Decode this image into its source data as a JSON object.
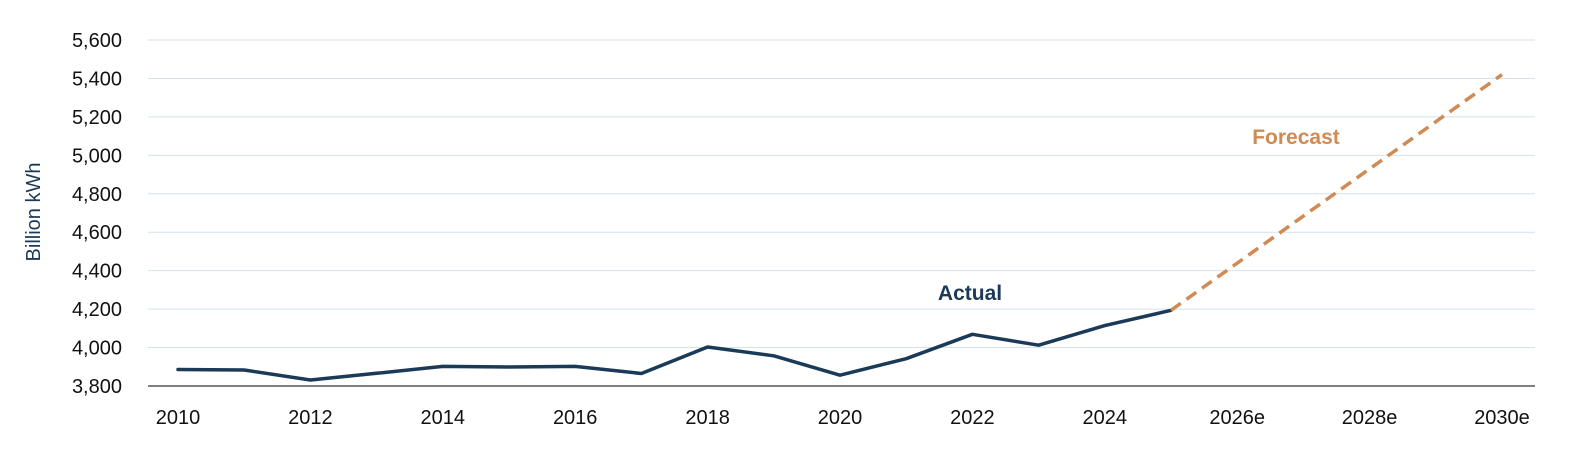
{
  "chart_data": {
    "type": "line",
    "ylabel": "Billion kWh",
    "ylim": [
      3800,
      5600
    ],
    "yticks": [
      3800,
      4000,
      4200,
      4400,
      4600,
      4800,
      5000,
      5200,
      5400,
      5600
    ],
    "ytick_labels": [
      "3,800",
      "4,000",
      "4,200",
      "4,400",
      "4,600",
      "4,800",
      "5,000",
      "5,200",
      "5,400",
      "5,600"
    ],
    "x": [
      "2010",
      "2011",
      "2012",
      "2013",
      "2014",
      "2015",
      "2016",
      "2017",
      "2018",
      "2019",
      "2020",
      "2021",
      "2022",
      "2023",
      "2024",
      "2025",
      "2026e",
      "2027e",
      "2028e",
      "2029e",
      "2030e"
    ],
    "xtick_labels": [
      "2010",
      "2012",
      "2014",
      "2016",
      "2018",
      "2020",
      "2022",
      "2024",
      "2026e",
      "2028e",
      "2030e"
    ],
    "grid": true,
    "colors": {
      "actual": "#1b3a57",
      "forecast": "#d08a54",
      "grid": "#d4e2ea",
      "axis": "#333333"
    },
    "series": [
      {
        "name": "Actual",
        "style": "solid",
        "x": [
          "2010",
          "2011",
          "2012",
          "2013",
          "2014",
          "2015",
          "2016",
          "2017",
          "2018",
          "2019",
          "2020",
          "2021",
          "2022",
          "2023",
          "2024",
          "2025"
        ],
        "values": [
          3886,
          3883,
          3831,
          3866,
          3902,
          3899,
          3902,
          3865,
          4003,
          3957,
          3856,
          3942,
          4069,
          4012,
          4114,
          4194
        ]
      },
      {
        "name": "Forecast",
        "style": "dashed",
        "x": [
          "2025",
          "2030e"
        ],
        "values": [
          4194,
          5420
        ]
      }
    ]
  }
}
